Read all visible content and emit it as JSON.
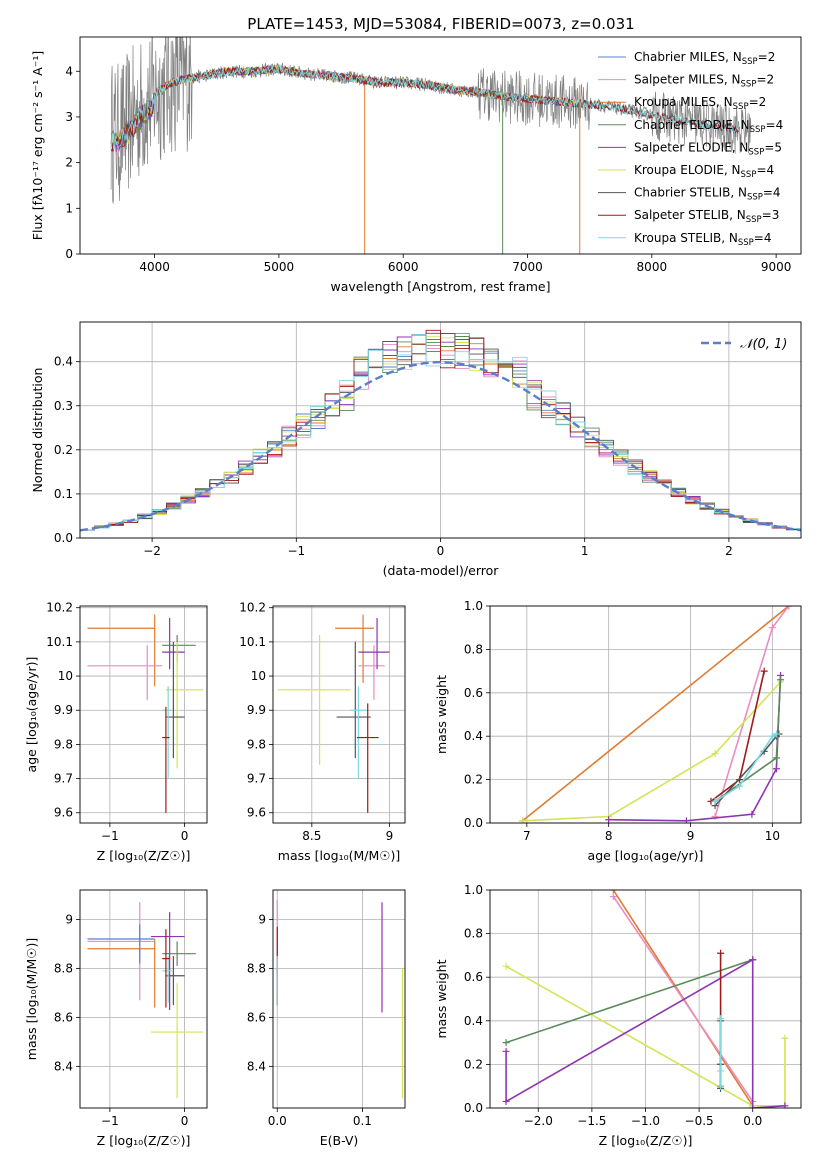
{
  "figure": {
    "title": "PLATE=1453, MJD=53084, FIBERID=0073, z=0.031"
  },
  "palette": {
    "Chabrier MILES": "#5a7fc8",
    "Salpeter MILES": "#e88cc3",
    "Kroupa MILES": "#e07b30",
    "Chabrier ELODIE": "#5b8a5b",
    "Salpeter ELODIE": "#8e35b0",
    "Kroupa ELODIE": "#d4e456",
    "Chabrier STELIB": "#555555",
    "Salpeter STELIB": "#a01818",
    "Kroupa STELIB": "#7fd8e0",
    "data": "#808080",
    "normal": "#5a7fc8"
  },
  "chart_data": [
    {
      "id": "spectrum",
      "type": "line",
      "title": "PLATE=1453, MJD=53084, FIBERID=0073, z=0.031",
      "xlabel": "wavelength [Angstrom, rest frame]",
      "ylabel": "Flux [fλ10⁻¹⁷ erg cm⁻² s⁻¹ A⁻¹]",
      "xlim": [
        3400,
        9200
      ],
      "ylim": [
        0,
        4.75
      ],
      "xticks": [
        4000,
        5000,
        6000,
        7000,
        8000,
        9000
      ],
      "yticks": [
        0,
        1,
        2,
        3,
        4
      ],
      "grid": false,
      "legend_position": "top-right",
      "legend": [
        {
          "label": "Chabrier MILES, N",
          "sub": "SSP",
          "tail": "=2"
        },
        {
          "label": "Salpeter MILES, N",
          "sub": "SSP",
          "tail": "=2"
        },
        {
          "label": "Kroupa MILES, N",
          "sub": "SSP",
          "tail": "=2"
        },
        {
          "label": "Chabrier ELODIE, N",
          "sub": "SSP",
          "tail": "=4"
        },
        {
          "label": "Salpeter ELODIE, N",
          "sub": "SSP",
          "tail": "=5"
        },
        {
          "label": "Kroupa ELODIE, N",
          "sub": "SSP",
          "tail": "=4"
        },
        {
          "label": "Chabrier STELIB, N",
          "sub": "SSP",
          "tail": "=4"
        },
        {
          "label": "Salpeter STELIB, N",
          "sub": "SSP",
          "tail": "=3"
        },
        {
          "label": "Kroupa STELIB, N",
          "sub": "SSP",
          "tail": "=4"
        }
      ],
      "series_names": [
        "Chabrier MILES",
        "Salpeter MILES",
        "Kroupa MILES",
        "Chabrier ELODIE",
        "Salpeter ELODIE",
        "Kroupa ELODIE",
        "Chabrier STELIB",
        "Salpeter STELIB",
        "Kroupa STELIB"
      ],
      "continuum": {
        "x": [
          3650,
          3700,
          3800,
          3900,
          4000,
          4100,
          4200,
          4400,
          4600,
          4800,
          5000,
          5200,
          5400,
          5600,
          5800,
          6000,
          6200,
          6400,
          6600,
          6800,
          7000,
          7200,
          7400,
          7600,
          7800,
          8000,
          8200,
          8400,
          8600,
          8800
        ],
        "y": [
          2.7,
          2.6,
          2.9,
          3.2,
          3.5,
          3.7,
          3.8,
          3.9,
          4.0,
          4.0,
          4.05,
          3.95,
          3.9,
          3.85,
          3.75,
          3.75,
          3.7,
          3.6,
          3.55,
          3.45,
          3.4,
          3.35,
          3.3,
          3.25,
          3.15,
          3.05,
          2.95,
          2.85,
          2.75,
          2.7
        ]
      },
      "data_range": [
        3650,
        8800
      ],
      "model_range": [
        3650,
        7450
      ],
      "stelib_range": [
        3650,
        8700
      ]
    },
    {
      "id": "residuals",
      "type": "histogram",
      "xlabel": "(data-model)/error",
      "ylabel": "Normed distribution",
      "xlim": [
        -2.5,
        2.5
      ],
      "ylim": [
        0,
        0.49
      ],
      "xticks": [
        -2,
        -1,
        0,
        1,
        2
      ],
      "yticks": [
        0.0,
        0.1,
        0.2,
        0.3,
        0.4
      ],
      "grid": true,
      "legend_position": "top-right",
      "reference_label": "𝒩(0, 1)"
    },
    {
      "id": "age-vs-Z",
      "type": "errorbar",
      "xlabel": "Z [log₁₀(Z/Z☉)]",
      "ylabel": "age  [log₁₀(age/yr)]",
      "xlim": [
        -1.4,
        0.3
      ],
      "ylim": [
        9.57,
        10.205
      ],
      "xticks": [
        -1,
        0
      ],
      "yticks": [
        9.6,
        9.7,
        9.8,
        9.9,
        10.0,
        10.1,
        10.2
      ],
      "grid": true,
      "points": [
        {
          "s": "Kroupa MILES",
          "x": -0.4,
          "xerr": [
            0.9,
            0.0
          ],
          "y": 10.14,
          "yerr": [
            0.17,
            0.04
          ]
        },
        {
          "s": "Salpeter MILES",
          "x": -0.5,
          "xerr": [
            0.8,
            0.2
          ],
          "y": 10.03,
          "yerr": [
            0.1,
            0.06
          ]
        },
        {
          "s": "Chabrier ELODIE",
          "x": -0.1,
          "xerr": [
            0.2,
            0.25
          ],
          "y": 10.09,
          "yerr": [
            0.05,
            0.03
          ]
        },
        {
          "s": "Salpeter ELODIE",
          "x": -0.2,
          "xerr": [
            0.1,
            0.2
          ],
          "y": 10.07,
          "yerr": [
            0.05,
            0.1
          ]
        },
        {
          "s": "Kroupa ELODIE",
          "x": -0.1,
          "xerr": [
            0.15,
            0.35
          ],
          "y": 9.96,
          "yerr": [
            0.23,
            0.14
          ]
        },
        {
          "s": "Chabrier STELIB",
          "x": -0.15,
          "xerr": [
            0.1,
            0.15
          ],
          "y": 9.88,
          "yerr": [
            0.12,
            0.22
          ]
        },
        {
          "s": "Kroupa STELIB",
          "x": -0.22,
          "xerr": [
            0.08,
            0.05
          ],
          "y": 9.9,
          "yerr": [
            0.2,
            0.07
          ]
        },
        {
          "s": "Salpeter STELIB",
          "x": -0.25,
          "xerr": [
            0.05,
            0.05
          ],
          "y": 9.82,
          "yerr": [
            0.22,
            0.09
          ]
        }
      ]
    },
    {
      "id": "age-vs-mass",
      "type": "errorbar",
      "xlabel": "mass [log₁₀(M/M☉)]",
      "ylabel": "",
      "xlim": [
        8.25,
        9.1
      ],
      "ylim": [
        9.57,
        10.205
      ],
      "xticks": [
        8.5,
        9.0
      ],
      "yticks": [
        9.6,
        9.7,
        9.8,
        9.9,
        10.0,
        10.1,
        10.2
      ],
      "grid": true,
      "points": [
        {
          "s": "Kroupa MILES",
          "x": 8.83,
          "xerr": [
            0.18,
            0.07
          ],
          "y": 10.14,
          "yerr": [
            0.16,
            0.04
          ]
        },
        {
          "s": "Salpeter MILES",
          "x": 8.9,
          "xerr": [
            0.1,
            0.07
          ],
          "y": 10.03,
          "yerr": [
            0.1,
            0.06
          ]
        },
        {
          "s": "Salpeter ELODIE",
          "x": 8.92,
          "xerr": [
            0.12,
            0.08
          ],
          "y": 10.07,
          "yerr": [
            0.05,
            0.1
          ]
        },
        {
          "s": "Kroupa ELODIE",
          "x": 8.55,
          "xerr": [
            0.27,
            0.2
          ],
          "y": 9.96,
          "yerr": [
            0.22,
            0.16
          ]
        },
        {
          "s": "Chabrier STELIB",
          "x": 8.78,
          "xerr": [
            0.12,
            0.1
          ],
          "y": 9.88,
          "yerr": [
            0.12,
            0.22
          ]
        },
        {
          "s": "Kroupa STELIB",
          "x": 8.8,
          "xerr": [
            0.05,
            0.06
          ],
          "y": 9.9,
          "yerr": [
            0.2,
            0.07
          ]
        },
        {
          "s": "Salpeter STELIB",
          "x": 8.86,
          "xerr": [
            0.07,
            0.07
          ],
          "y": 9.82,
          "yerr": [
            0.22,
            0.1
          ]
        }
      ]
    },
    {
      "id": "massweight-vs-age",
      "type": "line",
      "xlabel": "age  [log₁₀(age/yr)]",
      "ylabel": "mass weight",
      "xlim": [
        6.55,
        10.35
      ],
      "ylim": [
        0,
        1.0
      ],
      "xticks": [
        7,
        8,
        9,
        10
      ],
      "yticks": [
        0.0,
        0.2,
        0.4,
        0.6,
        0.8,
        1.0
      ],
      "grid": true,
      "series": [
        {
          "name": "Kroupa MILES",
          "x": [
            6.95,
            10.2
          ],
          "y": [
            0.01,
            1.0
          ]
        },
        {
          "name": "Salpeter MILES",
          "x": [
            9.3,
            10.0,
            10.2
          ],
          "y": [
            0.03,
            0.9,
            1.0
          ]
        },
        {
          "name": "Kroupa ELODIE",
          "x": [
            6.95,
            8.0,
            9.3,
            10.1
          ],
          "y": [
            0.01,
            0.03,
            0.32,
            0.65
          ]
        },
        {
          "name": "Salpeter ELODIE",
          "x": [
            8.0,
            8.95,
            9.75,
            10.05,
            10.1
          ],
          "y": [
            0.015,
            0.01,
            0.04,
            0.25,
            0.68
          ]
        },
        {
          "name": "Chabrier ELODIE",
          "x": [
            9.3,
            10.05,
            10.1
          ],
          "y": [
            0.1,
            0.3,
            0.66
          ]
        },
        {
          "name": "Salpeter STELIB",
          "x": [
            9.25,
            9.6,
            9.9
          ],
          "y": [
            0.1,
            0.2,
            0.7
          ]
        },
        {
          "name": "Chabrier STELIB",
          "x": [
            9.3,
            9.9,
            10.05,
            10.08
          ],
          "y": [
            0.08,
            0.33,
            0.4,
            0.41
          ]
        },
        {
          "name": "Kroupa STELIB",
          "x": [
            9.3,
            9.6,
            10.0,
            10.05
          ],
          "y": [
            0.1,
            0.17,
            0.4,
            0.41
          ]
        }
      ]
    },
    {
      "id": "mass-vs-Z",
      "type": "errorbar",
      "xlabel": "Z [log₁₀(Z/Z☉)]",
      "ylabel": "mass [log₁₀(M/M☉)]",
      "xlim": [
        -1.4,
        0.3
      ],
      "ylim": [
        8.23,
        9.12
      ],
      "xticks": [
        -1,
        0
      ],
      "yticks": [
        8.4,
        8.6,
        8.8,
        9.0
      ],
      "grid": true,
      "points": [
        {
          "s": "Kroupa MILES",
          "x": -0.4,
          "xerr": [
            0.9,
            0.0
          ],
          "y": 8.88,
          "yerr": [
            0.24,
            0.04
          ]
        },
        {
          "s": "Salpeter MILES",
          "x": -0.6,
          "xerr": [
            0.7,
            0.2
          ],
          "y": 8.91,
          "yerr": [
            0.24,
            0.16
          ]
        },
        {
          "s": "Chabrier MILES",
          "x": -0.6,
          "xerr": [
            0.7,
            0.2
          ],
          "y": 8.92,
          "yerr": [
            0.1,
            0.06
          ]
        },
        {
          "s": "Chabrier ELODIE",
          "x": -0.1,
          "xerr": [
            0.2,
            0.25
          ],
          "y": 8.86,
          "yerr": [
            0.05,
            0.05
          ]
        },
        {
          "s": "Salpeter ELODIE",
          "x": -0.2,
          "xerr": [
            0.25,
            0.2
          ],
          "y": 8.93,
          "yerr": [
            0.3,
            0.1
          ]
        },
        {
          "s": "Kroupa ELODIE",
          "x": -0.1,
          "xerr": [
            0.35,
            0.35
          ],
          "y": 8.54,
          "yerr": [
            0.27,
            0.2
          ]
        },
        {
          "s": "Chabrier STELIB",
          "x": -0.15,
          "xerr": [
            0.1,
            0.15
          ],
          "y": 8.77,
          "yerr": [
            0.12,
            0.08
          ]
        },
        {
          "s": "Kroupa STELIB",
          "x": -0.22,
          "xerr": [
            0.08,
            0.05
          ],
          "y": 8.79,
          "yerr": [
            0.13,
            0.06
          ]
        },
        {
          "s": "Salpeter STELIB",
          "x": -0.25,
          "xerr": [
            0.05,
            0.05
          ],
          "y": 8.84,
          "yerr": [
            0.2,
            0.12
          ]
        }
      ]
    },
    {
      "id": "mass-vs-EBV",
      "type": "errorbar",
      "xlabel": "E(B-V)",
      "ylabel": "",
      "xlim": [
        -0.005,
        0.15
      ],
      "ylim": [
        8.23,
        9.12
      ],
      "xticks": [
        0.0,
        0.1
      ],
      "xticklabels": [
        "0.0",
        "0.1"
      ],
      "yticks": [
        8.4,
        8.6,
        8.8,
        9.0
      ],
      "grid": true,
      "points": [
        {
          "s": "Salpeter MILES",
          "x": 0.0,
          "xerr": [
            0,
            0
          ],
          "y": 8.9,
          "yerr": [
            0.2,
            0.18
          ]
        },
        {
          "s": "Salpeter STELIB",
          "x": 0.0,
          "xerr": [
            0,
            0
          ],
          "y": 8.85,
          "yerr": [
            0.2,
            0.12
          ]
        },
        {
          "s": "Kroupa STELIB",
          "x": 0.0,
          "xerr": [
            0,
            0
          ],
          "y": 8.79,
          "yerr": [
            0.14,
            0.06
          ]
        },
        {
          "s": "Salpeter ELODIE",
          "x": 0.123,
          "xerr": [
            0,
            0
          ],
          "y": 8.9,
          "yerr": [
            0.28,
            0.17
          ]
        },
        {
          "s": "Kroupa ELODIE",
          "x": 0.147,
          "xerr": [
            0,
            0
          ],
          "y": 8.54,
          "yerr": [
            0.27,
            0.26
          ]
        }
      ]
    },
    {
      "id": "massweight-vs-Z",
      "type": "line",
      "xlabel": "Z [log₁₀(Z/Z☉)]",
      "ylabel": "mass weight",
      "xlim": [
        -2.45,
        0.45
      ],
      "ylim": [
        0,
        1.0
      ],
      "xticks": [
        -2.0,
        -1.5,
        -1.0,
        -0.5,
        0.0
      ],
      "xticklabels": [
        "−2.0",
        "−1.5",
        "−1.0",
        "−0.5",
        "0.0"
      ],
      "yticks": [
        0.0,
        0.2,
        0.4,
        0.6,
        0.8,
        1.0
      ],
      "grid": true,
      "series": [
        {
          "name": "Kroupa MILES",
          "x": [
            -1.3,
            0.0
          ],
          "y": [
            1.0,
            0.01
          ]
        },
        {
          "name": "Salpeter MILES",
          "x": [
            -1.3,
            0.0
          ],
          "y": [
            0.97,
            0.03
          ]
        },
        {
          "name": "Kroupa ELODIE",
          "x": [
            -2.3,
            0.0,
            0.3,
            0.3
          ],
          "y": [
            0.65,
            0.01,
            0.01,
            0.32
          ]
        },
        {
          "name": "Chabrier ELODIE",
          "x": [
            -2.3,
            0.0
          ],
          "y": [
            0.3,
            0.68
          ]
        },
        {
          "name": "Salpeter ELODIE",
          "x": [
            -2.3,
            -2.3,
            0.0,
            0.0,
            0.3
          ],
          "y": [
            0.26,
            0.03,
            0.68,
            0.0,
            0.01
          ]
        },
        {
          "name": "Salpeter STELIB",
          "x": [
            -0.3,
            -0.3,
            -0.3
          ],
          "y": [
            0.71,
            0.2,
            0.1
          ]
        },
        {
          "name": "Chabrier STELIB",
          "x": [
            -0.3,
            -0.3,
            -0.3
          ],
          "y": [
            0.4,
            0.2,
            0.09
          ]
        },
        {
          "name": "Kroupa STELIB",
          "x": [
            -0.3,
            -0.3,
            -0.3
          ],
          "y": [
            0.41,
            0.17,
            0.1
          ]
        }
      ]
    }
  ]
}
